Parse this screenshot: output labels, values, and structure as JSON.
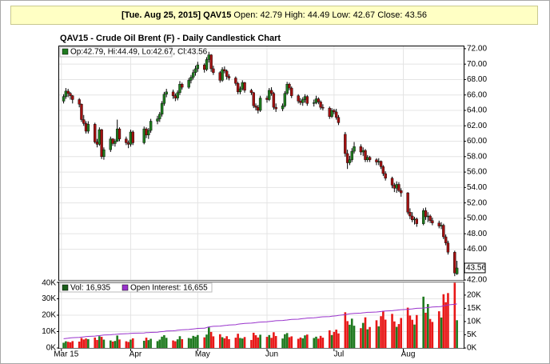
{
  "header": {
    "date": "[Tue. Aug 25, 2015]",
    "symbol": "QAV15",
    "quote": "Open: 42.79 High: 44.49 Low: 42.67 Close: 43.56"
  },
  "chart_data": [
    {
      "type": "candlestick",
      "title": "QAV15 - Crude Oil Brent (F) - Daily Candlestick Chart",
      "legend": "Op:42.79, Hi:44.49, Lo:42.67, Cl:43.56",
      "last_price_label": "43.56",
      "up_color": "#1f7a1f",
      "down_color": "#a01010",
      "xlim": [
        "2015-02-28",
        "2015-08-28"
      ],
      "ylim": [
        42,
        72.3
      ],
      "yticks": [
        {
          "value": 42,
          "label": "42.00"
        },
        {
          "value": 46,
          "label": "46.00"
        },
        {
          "value": 48,
          "label": "48.00"
        },
        {
          "value": 50,
          "label": "50.00"
        },
        {
          "value": 52,
          "label": "52.00"
        },
        {
          "value": 54,
          "label": "54.00"
        },
        {
          "value": 56,
          "label": "56.00"
        },
        {
          "value": 58,
          "label": "58.00"
        },
        {
          "value": 60,
          "label": "60.00"
        },
        {
          "value": 62,
          "label": "62.00"
        },
        {
          "value": 64,
          "label": "64.00"
        },
        {
          "value": 66,
          "label": "66.00"
        },
        {
          "value": 68,
          "label": "68.00"
        },
        {
          "value": 70,
          "label": "70.00"
        },
        {
          "value": 72,
          "label": "72.00"
        }
      ],
      "grid": true,
      "x": [
        "2015-03-02",
        "2015-03-03",
        "2015-03-04",
        "2015-03-05",
        "2015-03-06",
        "2015-03-09",
        "2015-03-10",
        "2015-03-11",
        "2015-03-12",
        "2015-03-13",
        "2015-03-16",
        "2015-03-17",
        "2015-03-18",
        "2015-03-19",
        "2015-03-20",
        "2015-03-23",
        "2015-03-24",
        "2015-03-25",
        "2015-03-26",
        "2015-03-27",
        "2015-03-30",
        "2015-03-31",
        "2015-04-01",
        "2015-04-02",
        "2015-04-07",
        "2015-04-08",
        "2015-04-09",
        "2015-04-10",
        "2015-04-13",
        "2015-04-14",
        "2015-04-15",
        "2015-04-16",
        "2015-04-17",
        "2015-04-20",
        "2015-04-21",
        "2015-04-22",
        "2015-04-23",
        "2015-04-24",
        "2015-04-27",
        "2015-04-28",
        "2015-04-29",
        "2015-04-30",
        "2015-05-01",
        "2015-05-04",
        "2015-05-05",
        "2015-05-06",
        "2015-05-07",
        "2015-05-08",
        "2015-05-11",
        "2015-05-12",
        "2015-05-13",
        "2015-05-14",
        "2015-05-15",
        "2015-05-18",
        "2015-05-19",
        "2015-05-20",
        "2015-05-21",
        "2015-05-22",
        "2015-05-25",
        "2015-05-26",
        "2015-05-27",
        "2015-05-28",
        "2015-05-29",
        "2015-06-01",
        "2015-06-02",
        "2015-06-03",
        "2015-06-04",
        "2015-06-05",
        "2015-06-08",
        "2015-06-09",
        "2015-06-10",
        "2015-06-11",
        "2015-06-12",
        "2015-06-15",
        "2015-06-16",
        "2015-06-17",
        "2015-06-18",
        "2015-06-19",
        "2015-06-22",
        "2015-06-23",
        "2015-06-24",
        "2015-06-25",
        "2015-06-26",
        "2015-06-29",
        "2015-06-30",
        "2015-07-01",
        "2015-07-02",
        "2015-07-03",
        "2015-07-06",
        "2015-07-07",
        "2015-07-08",
        "2015-07-09",
        "2015-07-10",
        "2015-07-13",
        "2015-07-14",
        "2015-07-15",
        "2015-07-16",
        "2015-07-17",
        "2015-07-20",
        "2015-07-21",
        "2015-07-22",
        "2015-07-23",
        "2015-07-24",
        "2015-07-27",
        "2015-07-28",
        "2015-07-29",
        "2015-07-30",
        "2015-07-31",
        "2015-08-03",
        "2015-08-04",
        "2015-08-05",
        "2015-08-06",
        "2015-08-07",
        "2015-08-10",
        "2015-08-11",
        "2015-08-12",
        "2015-08-13",
        "2015-08-14",
        "2015-08-17",
        "2015-08-18",
        "2015-08-19",
        "2015-08-20",
        "2015-08-21",
        "2015-08-24",
        "2015-08-25"
      ],
      "open": [
        65.2,
        65.8,
        66.5,
        66.2,
        65.9,
        65.4,
        64.8,
        62.8,
        62.3,
        61.3,
        62.2,
        59.9,
        59.6,
        61.5,
        58.0,
        58.9,
        60.3,
        59.7,
        60.0,
        61.6,
        60.3,
        59.8,
        59.6,
        61.2,
        59.8,
        61.6,
        60.8,
        61.4,
        62.6,
        62.9,
        63.5,
        64.9,
        66.1,
        66.4,
        65.9,
        65.6,
        66.3,
        67.4,
        67.0,
        67.9,
        68.3,
        68.9,
        69.4,
        69.9,
        69.3,
        70.6,
        71.2,
        69.4,
        68.9,
        67.9,
        69.3,
        69.1,
        68.4,
        68.2,
        67.5,
        66.4,
        66.8,
        67.6,
        66.6,
        66.3,
        64.6,
        64.4,
        64.0,
        65.6,
        65.4,
        66.6,
        66.2,
        64.4,
        64.2,
        64.6,
        66.2,
        67.4,
        66.9,
        65.9,
        65.2,
        65.0,
        65.4,
        65.8,
        64.9,
        65.0,
        65.5,
        65.1,
        64.4,
        64.3,
        63.2,
        64.0,
        63.8,
        63.1,
        60.9,
        58.4,
        57.2,
        57.6,
        58.7,
        59.3,
        58.6,
        58.8,
        57.6,
        57.9,
        57.6,
        57.3,
        57.4,
        56.7,
        55.8,
        55.2,
        54.3,
        53.9,
        54.4,
        53.6,
        53.3,
        50.8,
        50.3,
        49.8,
        49.9,
        49.3,
        51.0,
        50.2,
        50.3,
        49.7,
        49.4,
        49.0,
        49.1,
        47.6,
        46.8,
        45.6,
        42.79
      ],
      "high": [
        66.1,
        66.9,
        66.8,
        66.4,
        66.0,
        65.6,
        64.9,
        63.4,
        62.6,
        62.6,
        62.4,
        60.3,
        61.8,
        61.6,
        59.2,
        60.6,
        60.4,
        60.3,
        62.8,
        61.8,
        60.6,
        60.1,
        61.5,
        61.4,
        61.9,
        61.8,
        61.7,
        62.9,
        63.3,
        63.8,
        65.2,
        66.4,
        66.8,
        66.7,
        66.2,
        66.6,
        67.8,
        67.6,
        68.2,
        68.6,
        69.3,
        69.8,
        70.3,
        70.1,
        70.9,
        71.6,
        71.3,
        69.8,
        69.1,
        69.6,
        69.7,
        69.3,
        68.7,
        68.4,
        67.7,
        67.1,
        67.9,
        67.7,
        66.8,
        66.4,
        64.9,
        64.7,
        65.9,
        65.9,
        66.9,
        67.0,
        66.4,
        64.9,
        64.9,
        66.5,
        67.7,
        67.6,
        67.1,
        66.1,
        65.6,
        65.7,
        66.1,
        66.0,
        65.4,
        65.9,
        65.7,
        65.3,
        64.8,
        64.5,
        64.3,
        64.2,
        64.2,
        63.4,
        61.2,
        58.9,
        58.1,
        59.1,
        59.9,
        59.6,
        59.2,
        59.0,
        58.2,
        58.1,
        57.8,
        57.8,
        57.5,
        56.9,
        56.1,
        55.4,
        54.6,
        54.8,
        54.7,
        53.9,
        53.4,
        51.3,
        50.8,
        50.2,
        50.1,
        51.3,
        51.4,
        50.8,
        50.5,
        50.1,
        49.7,
        49.5,
        49.3,
        47.9,
        47.1,
        45.8,
        44.49
      ],
      "low": [
        64.9,
        65.5,
        65.7,
        65.4,
        64.9,
        64.4,
        62.5,
        62.0,
        61.0,
        61.0,
        59.7,
        59.2,
        59.4,
        57.7,
        57.6,
        58.6,
        59.4,
        59.3,
        59.9,
        60.0,
        59.5,
        59.1,
        59.3,
        59.5,
        59.6,
        60.4,
        60.3,
        61.1,
        62.2,
        62.5,
        63.2,
        64.6,
        65.7,
        65.5,
        65.2,
        65.3,
        66.0,
        66.7,
        66.8,
        67.5,
        68.0,
        68.5,
        69.0,
        68.9,
        69.1,
        70.2,
        69.0,
        68.6,
        67.6,
        67.7,
        68.8,
        68.0,
        67.9,
        67.2,
        66.1,
        66.1,
        66.6,
        66.3,
        66.0,
        64.3,
        64.0,
        63.6,
        63.8,
        65.0,
        65.2,
        65.9,
        64.1,
        63.8,
        63.9,
        64.4,
        66.0,
        66.6,
        65.6,
        64.9,
        64.7,
        64.6,
        65.0,
        64.6,
        64.5,
        64.8,
        64.8,
        64.1,
        64.0,
        62.9,
        63.0,
        63.5,
        62.8,
        62.1,
        58.0,
        56.4,
        56.9,
        57.3,
        58.4,
        58.2,
        58.1,
        57.3,
        57.3,
        57.3,
        56.9,
        56.9,
        56.4,
        55.5,
        54.9,
        53.9,
        53.4,
        53.3,
        53.4,
        52.8,
        50.5,
        49.9,
        49.5,
        49.2,
        48.9,
        49.1,
        49.8,
        49.5,
        49.4,
        49.1,
        48.7,
        48.6,
        47.3,
        46.5,
        45.3,
        42.5,
        42.67
      ],
      "close": [
        65.8,
        66.5,
        66.2,
        65.9,
        65.4,
        64.8,
        62.8,
        62.3,
        61.3,
        62.2,
        59.9,
        59.6,
        61.5,
        58.0,
        58.9,
        60.3,
        59.7,
        60.0,
        61.6,
        60.3,
        59.8,
        59.6,
        61.2,
        59.8,
        61.6,
        60.8,
        61.4,
        62.6,
        62.9,
        63.5,
        64.9,
        66.1,
        66.4,
        65.9,
        65.6,
        66.3,
        67.4,
        67.0,
        67.9,
        68.3,
        68.9,
        69.4,
        69.9,
        69.3,
        70.6,
        71.2,
        69.4,
        68.9,
        67.9,
        69.3,
        69.1,
        68.4,
        68.2,
        67.5,
        66.4,
        66.8,
        67.6,
        66.6,
        66.3,
        64.6,
        64.4,
        64.0,
        65.6,
        65.4,
        66.6,
        66.2,
        64.4,
        64.2,
        64.6,
        66.2,
        67.4,
        66.9,
        65.9,
        65.2,
        65.0,
        65.4,
        65.8,
        64.9,
        65.0,
        65.5,
        65.1,
        64.4,
        64.3,
        63.2,
        64.0,
        63.8,
        63.1,
        62.4,
        58.4,
        57.2,
        57.6,
        58.7,
        59.3,
        58.6,
        58.8,
        57.6,
        57.9,
        57.6,
        57.3,
        57.4,
        56.7,
        55.8,
        55.2,
        54.3,
        53.9,
        54.4,
        53.6,
        53.3,
        50.8,
        50.3,
        49.8,
        49.9,
        49.3,
        51.0,
        50.2,
        50.3,
        49.7,
        49.4,
        49.0,
        49.1,
        47.6,
        46.8,
        45.6,
        42.9,
        43.56
      ]
    },
    {
      "type": "bar",
      "xticks": [
        {
          "value": "2015-03-01",
          "label": "Mar 15"
        },
        {
          "value": "2015-04-01",
          "label": "Apr"
        },
        {
          "value": "2015-05-01",
          "label": "May"
        },
        {
          "value": "2015-06-01",
          "label": "Jun"
        },
        {
          "value": "2015-07-01",
          "label": "Jul"
        },
        {
          "value": "2015-08-01",
          "label": "Aug"
        }
      ],
      "ylim": [
        0,
        40000
      ],
      "yticks": [
        {
          "value": 0,
          "label": "0K"
        },
        {
          "value": 10000,
          "label": "10K"
        },
        {
          "value": 20000,
          "label": "20K"
        },
        {
          "value": 30000,
          "label": "30K"
        },
        {
          "value": 40000,
          "label": "40K"
        }
      ],
      "y2lim": [
        0,
        24800
      ],
      "y2ticks": [
        {
          "value": 0,
          "label": "0K"
        },
        {
          "value": 5000,
          "label": "5K"
        },
        {
          "value": 10000,
          "label": "10K"
        },
        {
          "value": 15000,
          "label": "15K"
        },
        {
          "value": 20000,
          "label": "20K"
        }
      ],
      "series": [
        {
          "name": "Vol: 16,935",
          "type": "bar",
          "color": "#1a5e1a",
          "values": [
            3200,
            4100,
            3800,
            3500,
            4200,
            3900,
            6100,
            5200,
            5800,
            5400,
            6400,
            4900,
            7200,
            6800,
            5100,
            4600,
            3900,
            4300,
            7600,
            5200,
            4100,
            3700,
            5100,
            5900,
            4400,
            6300,
            4800,
            5600,
            4200,
            5100,
            6900,
            7800,
            6200,
            4600,
            4100,
            5300,
            7200,
            5400,
            6100,
            5800,
            7400,
            6900,
            7900,
            6500,
            8200,
            12600,
            9800,
            7100,
            8400,
            6600,
            5900,
            7200,
            5400,
            6300,
            8700,
            6100,
            5800,
            6700,
            4900,
            9300,
            7800,
            6400,
            8100,
            6800,
            7900,
            6200,
            9600,
            7300,
            5800,
            8400,
            9100,
            6600,
            7100,
            5600,
            6400,
            5900,
            7700,
            8200,
            6100,
            6900,
            5700,
            7400,
            6300,
            10800,
            7900,
            9800,
            11200,
            8900,
            21800,
            16400,
            14200,
            17900,
            13600,
            12100,
            15300,
            18700,
            11400,
            12800,
            16900,
            13200,
            19400,
            22600,
            17300,
            20800,
            16200,
            12900,
            14600,
            18300,
            24600,
            19800,
            17200,
            14300,
            20100,
            31300,
            21500,
            26800,
            17700,
            15900,
            22400,
            18600,
            32800,
            27900,
            33500,
            39800,
            16935
          ]
        },
        {
          "name": "Open Interest: 16,655",
          "type": "line",
          "axis": "y2",
          "color": "#9933cc",
          "values": [
            3500,
            3600,
            3700,
            3800,
            3900,
            4000,
            4100,
            4200,
            4300,
            4400,
            4500,
            4600,
            4700,
            4800,
            4900,
            5000,
            5100,
            5150,
            5200,
            5300,
            5400,
            5450,
            5500,
            5600,
            5700,
            5800,
            5850,
            5900,
            6000,
            6100,
            6200,
            6300,
            6400,
            6500,
            6600,
            6700,
            6800,
            6900,
            7000,
            7100,
            7200,
            7300,
            7400,
            7500,
            7700,
            8000,
            8100,
            8200,
            8300,
            8400,
            8500,
            8600,
            8700,
            8800,
            9000,
            9100,
            9200,
            9300,
            9400,
            9500,
            9600,
            9700,
            9800,
            9900,
            10000,
            10100,
            10200,
            10300,
            10400,
            10500,
            10600,
            10700,
            10800,
            10900,
            11000,
            11100,
            11200,
            11300,
            11400,
            11500,
            11600,
            11700,
            11800,
            11900,
            12000,
            12100,
            12200,
            12300,
            12600,
            12800,
            12900,
            13000,
            13100,
            13200,
            13300,
            13400,
            13500,
            13500,
            13600,
            13700,
            13800,
            13900,
            14000,
            14100,
            14200,
            14300,
            14400,
            14500,
            14600,
            14700,
            14800,
            14900,
            15000,
            15100,
            15200,
            15300,
            15400,
            15500,
            15600,
            15700,
            15900,
            16100,
            16300,
            16500,
            16655
          ]
        }
      ]
    }
  ]
}
